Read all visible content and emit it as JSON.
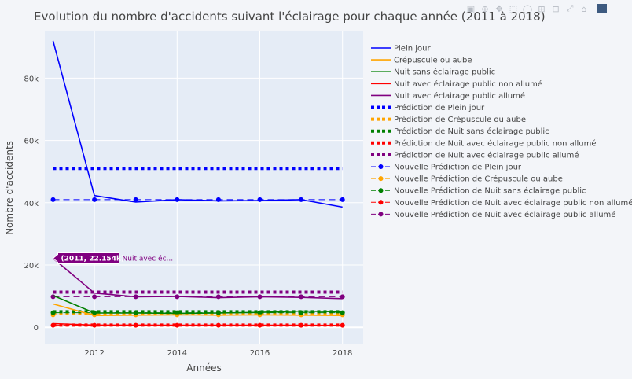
{
  "title": "Evolution du nombre d'accidents suivant l'éclairage pour chaque année (2011 à 2018)",
  "chart_data": {
    "type": "line",
    "title": "Evolution du nombre d'accidents suivant l'éclairage pour chaque année (2011 à 2018)",
    "xlabel": "Années",
    "ylabel": "Nombre d'accidents",
    "xlim": [
      2010.8,
      2018.5
    ],
    "ylim": [
      -5500,
      95000
    ],
    "x_ticks": [
      2012,
      2014,
      2016,
      2018
    ],
    "x_tick_labels": [
      "2012",
      "2014",
      "2016",
      "2018"
    ],
    "y_ticks": [
      0,
      20000,
      40000,
      60000,
      80000
    ],
    "y_tick_labels": [
      "0",
      "20k",
      "40k",
      "60k",
      "80k"
    ],
    "grid": true,
    "legend_position": "right",
    "series": [
      {
        "name": "Plein jour",
        "color": "#0000ff",
        "style": "solid",
        "x": [
          2011,
          2012,
          2013,
          2014,
          2015,
          2016,
          2017,
          2018
        ],
        "values": [
          92000,
          42300,
          40200,
          41000,
          40600,
          40700,
          41000,
          38600
        ]
      },
      {
        "name": "Crépuscule ou aube",
        "color": "#ffa500",
        "style": "solid",
        "x": [
          2011,
          2012,
          2013,
          2014,
          2015,
          2016,
          2017,
          2018
        ],
        "values": [
          7500,
          3800,
          3900,
          4000,
          3900,
          4000,
          3900,
          3800
        ]
      },
      {
        "name": "Nuit sans éclairage public",
        "color": "#008000",
        "style": "solid",
        "x": [
          2011,
          2012,
          2013,
          2014,
          2015,
          2016,
          2017,
          2018
        ],
        "values": [
          10200,
          4600,
          4600,
          4500,
          4600,
          4800,
          5200,
          5000
        ]
      },
      {
        "name": "Nuit avec éclairage public non allumé",
        "color": "#ff0000",
        "style": "solid",
        "x": [
          2011,
          2012,
          2013,
          2014,
          2015,
          2016,
          2017,
          2018
        ],
        "values": [
          1200,
          700,
          700,
          650,
          650,
          650,
          650,
          600
        ]
      },
      {
        "name": "Nuit avec éclairage public allumé",
        "color": "#800080",
        "style": "solid",
        "x": [
          2011,
          2012,
          2013,
          2014,
          2015,
          2016,
          2017,
          2018
        ],
        "values": [
          22154,
          11000,
          9800,
          9900,
          9500,
          9800,
          9600,
          9200
        ]
      },
      {
        "name": "Prédiction de Plein jour",
        "color": "#0000ff",
        "style": "dot",
        "x": [
          2011,
          2012,
          2013,
          2014,
          2015,
          2016,
          2017,
          2018
        ],
        "values": [
          51000,
          51000,
          51000,
          51000,
          51000,
          51000,
          51000,
          51000
        ]
      },
      {
        "name": "Prédiction de Crépuscule ou aube",
        "color": "#ffa500",
        "style": "dot",
        "x": [
          2011,
          2012,
          2013,
          2014,
          2015,
          2016,
          2017,
          2018
        ],
        "values": [
          4500,
          4500,
          4500,
          4500,
          4500,
          4500,
          4500,
          4500
        ]
      },
      {
        "name": "Prédiction de Nuit sans éclairage public",
        "color": "#008000",
        "style": "dot",
        "x": [
          2011,
          2012,
          2013,
          2014,
          2015,
          2016,
          2017,
          2018
        ],
        "values": [
          5000,
          5000,
          5000,
          5000,
          5000,
          5000,
          5000,
          5000
        ]
      },
      {
        "name": "Prédiction de Nuit avec éclairage public non allumé",
        "color": "#ff0000",
        "style": "dot",
        "x": [
          2011,
          2012,
          2013,
          2014,
          2015,
          2016,
          2017,
          2018
        ],
        "values": [
          700,
          700,
          700,
          700,
          700,
          700,
          700,
          700
        ]
      },
      {
        "name": "Prédiction de Nuit avec éclairage public allumé",
        "color": "#800080",
        "style": "dot",
        "x": [
          2011,
          2012,
          2013,
          2014,
          2015,
          2016,
          2017,
          2018
        ],
        "values": [
          11300,
          11300,
          11300,
          11300,
          11300,
          11300,
          11300,
          11300
        ]
      },
      {
        "name": "Nouvelle Prédiction de Plein jour",
        "color": "#0000ff",
        "style": "dash-markers",
        "x": [
          2011,
          2012,
          2013,
          2014,
          2015,
          2016,
          2017,
          2018
        ],
        "values": [
          41000,
          41000,
          41000,
          41000,
          41000,
          41000,
          41000,
          41000
        ]
      },
      {
        "name": "Nouvelle Prédiction de Crépuscule ou aube",
        "color": "#ffa500",
        "style": "dash-markers",
        "x": [
          2011,
          2012,
          2013,
          2014,
          2015,
          2016,
          2017,
          2018
        ],
        "values": [
          4000,
          4000,
          4000,
          4000,
          4000,
          4000,
          4000,
          4000
        ]
      },
      {
        "name": "Nouvelle Prédiction de Nuit sans éclairage public",
        "color": "#008000",
        "style": "dash-markers",
        "x": [
          2011,
          2012,
          2013,
          2014,
          2015,
          2016,
          2017,
          2018
        ],
        "values": [
          4700,
          4700,
          4700,
          4700,
          4700,
          4700,
          4700,
          4700
        ]
      },
      {
        "name": "Nouvelle Prédiction de Nuit avec éclairage public non allumé",
        "color": "#ff0000",
        "style": "dash-markers",
        "x": [
          2011,
          2012,
          2013,
          2014,
          2015,
          2016,
          2017,
          2018
        ],
        "values": [
          650,
          650,
          650,
          650,
          650,
          650,
          650,
          650
        ]
      },
      {
        "name": "Nouvelle Prédiction de Nuit avec éclairage public allumé",
        "color": "#800080",
        "style": "dash-markers",
        "x": [
          2011,
          2012,
          2013,
          2014,
          2015,
          2016,
          2017,
          2018
        ],
        "values": [
          9800,
          9800,
          9800,
          9800,
          9800,
          9800,
          9800,
          9800
        ]
      }
    ],
    "hover": {
      "label": "(2011, 22.154k)",
      "series_text": "Nuit avec éc...",
      "x": 2011,
      "y": 22154,
      "color": "#800080"
    }
  },
  "modebar": {
    "icons": [
      "camera-icon",
      "zoom-icon",
      "pan-icon",
      "box-select-icon",
      "lasso-icon",
      "zoom-in-icon",
      "zoom-out-icon",
      "autoscale-icon",
      "reset-axes-icon",
      "plotly-logo-icon"
    ]
  }
}
